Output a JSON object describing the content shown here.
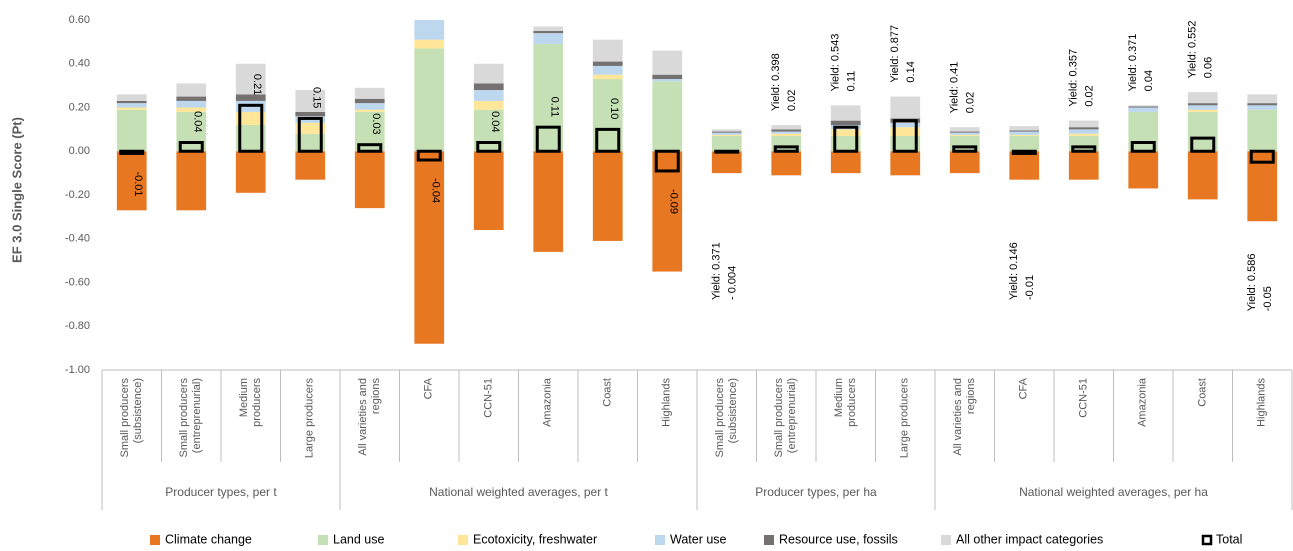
{
  "chart_data": {
    "type": "bar",
    "y_label": "EF 3.0 Single Score (Pt)",
    "ylim": [
      -1.0,
      0.6
    ],
    "yticks": [
      {
        "value": 0.6,
        "label": "0.60"
      },
      {
        "value": 0.4,
        "label": "0.40"
      },
      {
        "value": 0.2,
        "label": "0.20"
      },
      {
        "value": 0,
        "label": "0.00"
      },
      {
        "value": -0.2,
        "label": "-0.20"
      },
      {
        "value": -0.4,
        "label": "-0.40"
      },
      {
        "value": -0.6,
        "label": "-0.60"
      },
      {
        "value": -0.8,
        "label": "-0.80"
      },
      {
        "value": -1.0,
        "label": "-1.00"
      }
    ],
    "groups": [
      {
        "name": "Producer types, per t",
        "categories": [
          "Small producers (subsistence)",
          "Small producers (entreprenurial)",
          "Medium producers",
          "Large producers"
        ]
      },
      {
        "name": "National weighted averages, per t",
        "categories": [
          "All varieties and regions",
          "CFA",
          "CCN-51",
          "Amazonia",
          "Coast",
          "Highlands"
        ]
      },
      {
        "name": "Producer types, per ha",
        "categories": [
          "Small producers (subsistence)",
          "Small producers (entreprenurial)",
          "Medium producers",
          "Large producers"
        ]
      },
      {
        "name": "National weighted averages, per ha",
        "categories": [
          "All varieties and regions",
          "CFA",
          "CCN-51",
          "Amazonia",
          "Coast",
          "Highlands"
        ]
      }
    ],
    "series": [
      {
        "name": "Climate change",
        "color": "#e87722",
        "values": [
          -0.27,
          -0.27,
          -0.19,
          -0.13,
          -0.26,
          -0.88,
          -0.36,
          -0.46,
          -0.41,
          -0.55,
          -0.1,
          -0.11,
          -0.1,
          -0.11,
          -0.1,
          -0.13,
          -0.13,
          -0.17,
          -0.22,
          -0.32
        ]
      },
      {
        "name": "Land use",
        "color": "#c5e0b4",
        "values": [
          0.19,
          0.18,
          0.12,
          0.08,
          0.18,
          0.47,
          0.19,
          0.49,
          0.33,
          0.32,
          0.07,
          0.07,
          0.07,
          0.07,
          0.07,
          0.07,
          0.07,
          0.18,
          0.18,
          0.19
        ]
      },
      {
        "name": "Ecotoxicity, freshwater",
        "color": "#ffe699",
        "values": [
          0.01,
          0.02,
          0.06,
          0.05,
          0.01,
          0.04,
          0.04,
          0.0,
          0.02,
          0.0,
          0.005,
          0.01,
          0.03,
          0.04,
          0.005,
          0.005,
          0.01,
          0.0,
          0.01,
          0.0
        ]
      },
      {
        "name": "Water use",
        "color": "#bdd7ee",
        "values": [
          0.02,
          0.03,
          0.05,
          0.03,
          0.03,
          0.1,
          0.05,
          0.05,
          0.04,
          0.01,
          0.01,
          0.01,
          0.02,
          0.02,
          0.01,
          0.015,
          0.02,
          0.02,
          0.02,
          0.02
        ]
      },
      {
        "name": "Resource use, fossils",
        "color": "#767171",
        "values": [
          0.01,
          0.02,
          0.03,
          0.02,
          0.02,
          0.02,
          0.03,
          0.01,
          0.02,
          0.02,
          0.005,
          0.01,
          0.02,
          0.02,
          0.005,
          0.005,
          0.01,
          0.005,
          0.01,
          0.01
        ]
      },
      {
        "name": "All other impact categories",
        "color": "#d9d9d9",
        "values": [
          0.03,
          0.06,
          0.14,
          0.1,
          0.05,
          0.05,
          0.09,
          0.02,
          0.1,
          0.11,
          0.01,
          0.02,
          0.07,
          0.1,
          0.02,
          0.02,
          0.03,
          0.005,
          0.05,
          0.04
        ]
      }
    ],
    "total": {
      "name": "Total",
      "color": "#000000",
      "values": [
        -0.01,
        0.04,
        0.21,
        0.15,
        0.03,
        -0.04,
        0.04,
        0.11,
        0.1,
        -0.09,
        -0.004,
        0.02,
        0.11,
        0.14,
        0.02,
        -0.01,
        0.02,
        0.04,
        0.06,
        -0.05
      ],
      "value_labels": [
        "-0.01",
        "0.04",
        "0.21",
        "0.15",
        "0.03",
        "-0.04",
        "0.04",
        "0.11",
        "0.10",
        "-0.09",
        "- 0.004",
        "0.02",
        "0.11",
        "0.14",
        "0.02",
        "-0.01",
        "0.02",
        "0.04",
        "0.06",
        "-0.05"
      ]
    },
    "yield_labels": [
      null,
      null,
      null,
      null,
      null,
      null,
      null,
      null,
      null,
      null,
      "Yield: 0.371",
      "Yield: 0.398",
      "Yield: 0.543",
      "Yield: 0.877",
      "Yield: 0.41",
      "Yield: 0.146",
      "Yield: 0.357",
      "Yield: 0.371",
      "Yield: 0.552",
      "Yield: 0.586"
    ]
  }
}
